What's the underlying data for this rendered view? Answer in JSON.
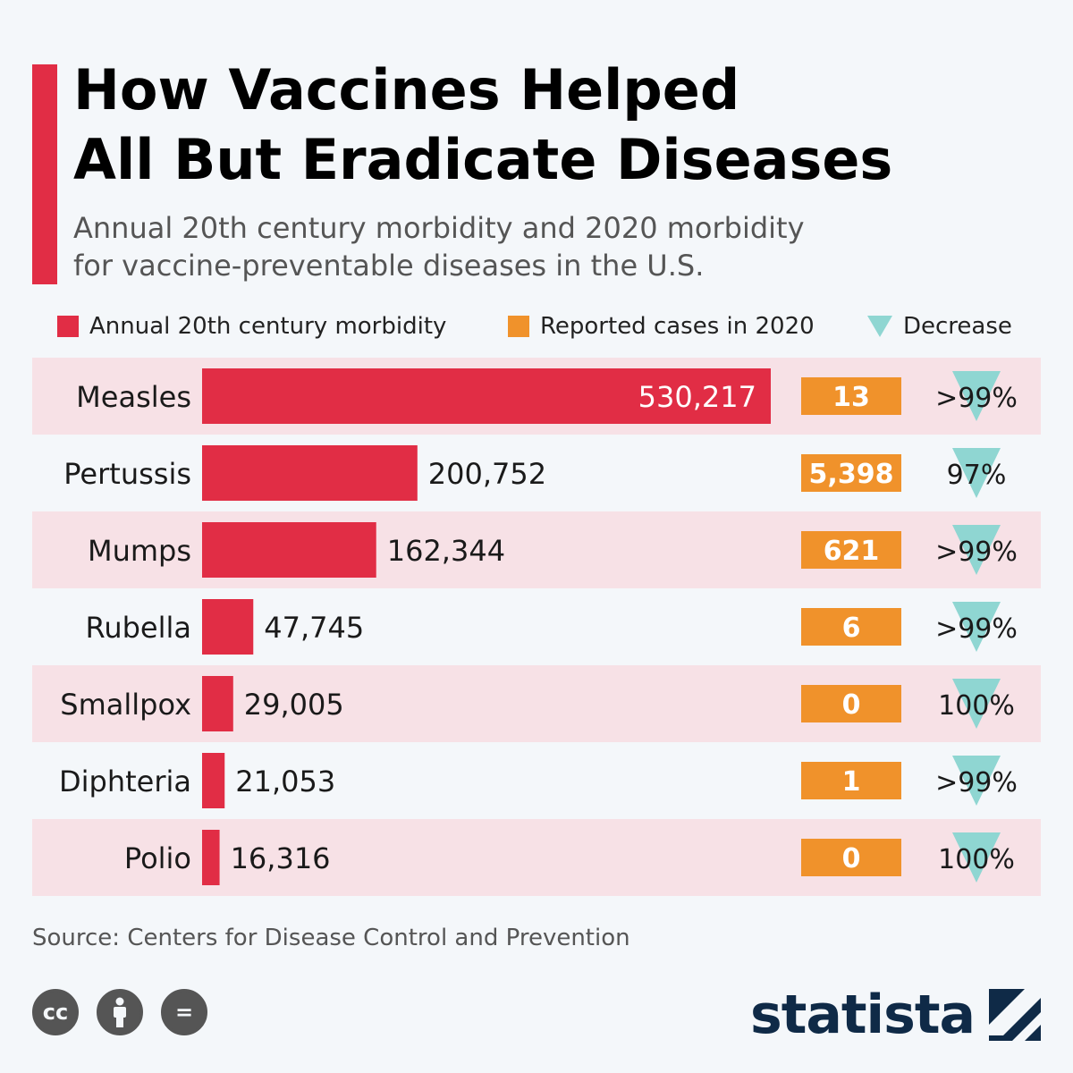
{
  "header": {
    "title_line1": "How Vaccines Helped",
    "title_line2": "All But Eradicate Diseases",
    "subtitle_line1": "Annual 20th century morbidity and 2020 morbidity",
    "subtitle_line2": "for vaccine-preventable diseases in the U.S.",
    "accent_color": "#e12d45"
  },
  "legend": {
    "items": [
      {
        "label": "Annual 20th century morbidity",
        "color": "#e12d45"
      },
      {
        "label": "Reported cases in 2020",
        "color": "#f0922b"
      },
      {
        "label": "Decrease",
        "color": "#8fd6d2"
      }
    ]
  },
  "chart_data": {
    "type": "bar",
    "orientation": "horizontal",
    "categories": [
      "Measles",
      "Pertussis",
      "Mumps",
      "Rubella",
      "Smallpox",
      "Diphteria",
      "Polio"
    ],
    "series": [
      {
        "name": "Annual 20th century morbidity",
        "values": [
          530217,
          200752,
          162344,
          47745,
          29005,
          21053,
          16316
        ],
        "labels": [
          "530,217",
          "200,752",
          "162,344",
          "47,745",
          "29,005",
          "21,053",
          "16,316"
        ],
        "color": "#e12d45"
      },
      {
        "name": "Reported cases in 2020",
        "values": [
          13,
          5398,
          621,
          6,
          0,
          1,
          0
        ],
        "labels": [
          "13",
          "5,398",
          "621",
          "6",
          "0",
          "1",
          "0"
        ],
        "color": "#f0922b"
      },
      {
        "name": "Decrease",
        "labels": [
          ">99%",
          "97%",
          ">99%",
          ">99%",
          "100%",
          ">99%",
          "100%"
        ],
        "color": "#8fd6d2"
      }
    ],
    "xlim": [
      0,
      530217
    ],
    "row_stripe_color": "#f7e1e6",
    "grid": false
  },
  "footer": {
    "source": "Source: Centers for Disease Control and Prevention",
    "cc_icons": [
      "cc-icon",
      "by-person-icon",
      "no-derivatives-icon"
    ],
    "cc_labels": [
      "cc",
      "",
      "="
    ],
    "brand": "statista",
    "brand_color": "#0f2a47"
  }
}
